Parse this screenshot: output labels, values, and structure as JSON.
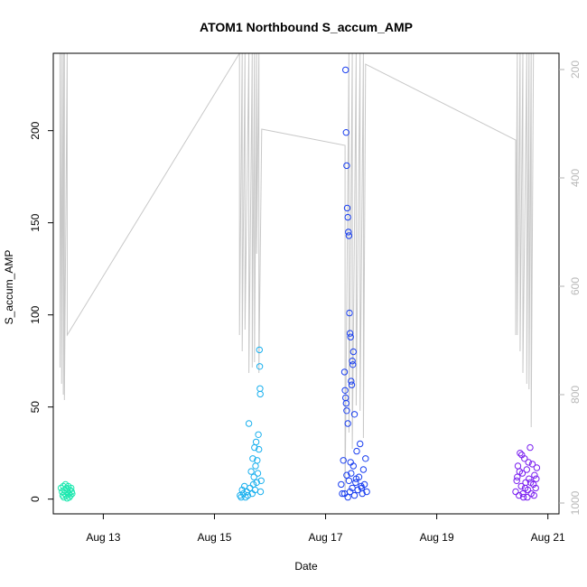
{
  "chart_data": {
    "type": "scatter",
    "title": "ATOM1 Northbound S_accum_AMP",
    "xlabel": "Date",
    "ylabel": "S_accum_AMP",
    "x_ticks": [
      "Aug 13",
      "Aug 15",
      "Aug 17",
      "Aug 19",
      "Aug 21"
    ],
    "x_tick_values": [
      13,
      15,
      17,
      19,
      21
    ],
    "xlim": [
      12.1,
      21.2
    ],
    "y_ticks": [
      0,
      50,
      100,
      150,
      200
    ],
    "ylim": [
      -8,
      242
    ],
    "y2_ticks": [
      200,
      400,
      600,
      800,
      1000
    ],
    "y2_lim": [
      1020,
      170
    ],
    "y2_reversed": true,
    "grid": false,
    "point_series": [
      {
        "color": "#1fe8b0",
        "points": [
          [
            12.24,
            6
          ],
          [
            12.26,
            4
          ],
          [
            12.27,
            2
          ],
          [
            12.28,
            7
          ],
          [
            12.29,
            1
          ],
          [
            12.3,
            5
          ],
          [
            12.31,
            3
          ],
          [
            12.32,
            8
          ],
          [
            12.33,
            2
          ],
          [
            12.34,
            6
          ],
          [
            12.35,
            0.5
          ],
          [
            12.36,
            4
          ],
          [
            12.37,
            7
          ],
          [
            12.38,
            3
          ],
          [
            12.39,
            1
          ],
          [
            12.4,
            5
          ],
          [
            12.41,
            2
          ],
          [
            12.42,
            6
          ],
          [
            12.43,
            4
          ],
          [
            12.44,
            3
          ]
        ]
      },
      {
        "color": "#1ab0ee",
        "points": [
          [
            15.46,
            2
          ],
          [
            15.48,
            1
          ],
          [
            15.5,
            5
          ],
          [
            15.52,
            3
          ],
          [
            15.54,
            7
          ],
          [
            15.56,
            1
          ],
          [
            15.58,
            4
          ],
          [
            15.6,
            2
          ],
          [
            15.62,
            41
          ],
          [
            15.64,
            6
          ],
          [
            15.66,
            15
          ],
          [
            15.68,
            3
          ],
          [
            15.69,
            22
          ],
          [
            15.7,
            8
          ],
          [
            15.71,
            12
          ],
          [
            15.72,
            28
          ],
          [
            15.73,
            5
          ],
          [
            15.74,
            18
          ],
          [
            15.75,
            31
          ],
          [
            15.76,
            9
          ],
          [
            15.77,
            21
          ],
          [
            15.78,
            14
          ],
          [
            15.79,
            35
          ],
          [
            15.8,
            27
          ],
          [
            15.81,
            81
          ],
          [
            15.815,
            72
          ],
          [
            15.82,
            60
          ],
          [
            15.825,
            57
          ],
          [
            15.83,
            4
          ],
          [
            15.84,
            10
          ]
        ]
      },
      {
        "color": "#1a3ff0",
        "points": [
          [
            17.28,
            8
          ],
          [
            17.3,
            3
          ],
          [
            17.32,
            21
          ],
          [
            17.34,
            69
          ],
          [
            17.36,
            233
          ],
          [
            17.37,
            199
          ],
          [
            17.38,
            181
          ],
          [
            17.39,
            158
          ],
          [
            17.4,
            153
          ],
          [
            17.41,
            145
          ],
          [
            17.42,
            143
          ],
          [
            17.43,
            101
          ],
          [
            17.44,
            90
          ],
          [
            17.45,
            88
          ],
          [
            17.46,
            64
          ],
          [
            17.47,
            62
          ],
          [
            17.48,
            75
          ],
          [
            17.49,
            73
          ],
          [
            17.5,
            80
          ],
          [
            17.35,
            59
          ],
          [
            17.36,
            55
          ],
          [
            17.37,
            52
          ],
          [
            17.38,
            48
          ],
          [
            17.4,
            41
          ],
          [
            17.52,
            46
          ],
          [
            17.42,
            10
          ],
          [
            17.44,
            4
          ],
          [
            17.46,
            14
          ],
          [
            17.48,
            6
          ],
          [
            17.5,
            18
          ],
          [
            17.52,
            2
          ],
          [
            17.54,
            9
          ],
          [
            17.56,
            26
          ],
          [
            17.58,
            5
          ],
          [
            17.6,
            12
          ],
          [
            17.62,
            30
          ],
          [
            17.64,
            7
          ],
          [
            17.66,
            3
          ],
          [
            17.68,
            16
          ],
          [
            17.7,
            8
          ],
          [
            17.72,
            22
          ],
          [
            17.74,
            4
          ],
          [
            17.38,
            13
          ],
          [
            17.4,
            1
          ],
          [
            17.45,
            20
          ],
          [
            17.55,
            11
          ],
          [
            17.65,
            6
          ],
          [
            17.34,
            3
          ]
        ]
      },
      {
        "color": "#7a1ff0",
        "points": [
          [
            20.42,
            4
          ],
          [
            20.44,
            10
          ],
          [
            20.46,
            18
          ],
          [
            20.48,
            2
          ],
          [
            20.5,
            25
          ],
          [
            20.52,
            7
          ],
          [
            20.54,
            14
          ],
          [
            20.56,
            1
          ],
          [
            20.58,
            22
          ],
          [
            20.6,
            9
          ],
          [
            20.62,
            16
          ],
          [
            20.64,
            5
          ],
          [
            20.66,
            11
          ],
          [
            20.68,
            28
          ],
          [
            20.7,
            3
          ],
          [
            20.72,
            19
          ],
          [
            20.74,
            8
          ],
          [
            20.76,
            13
          ],
          [
            20.78,
            6
          ],
          [
            20.8,
            17
          ],
          [
            20.45,
            12
          ],
          [
            20.55,
            3
          ],
          [
            20.65,
            20
          ],
          [
            20.75,
            2
          ],
          [
            20.49,
            15
          ],
          [
            20.59,
            6
          ],
          [
            20.69,
            9
          ],
          [
            20.79,
            11
          ],
          [
            20.53,
            24
          ],
          [
            20.63,
            1
          ]
        ]
      }
    ],
    "line_series": [
      {
        "color": "#c8c8c8",
        "axis": "right",
        "points": [
          [
            12.22,
            170
          ],
          [
            12.22,
            750
          ],
          [
            12.25,
            170
          ],
          [
            12.25,
            780
          ],
          [
            12.28,
            170
          ],
          [
            12.28,
            800
          ],
          [
            12.3,
            170
          ],
          [
            12.3,
            810
          ],
          [
            12.35,
            170
          ],
          [
            12.35,
            690
          ],
          [
            15.45,
            170
          ],
          [
            15.45,
            690
          ],
          [
            15.5,
            170
          ],
          [
            15.5,
            720
          ],
          [
            15.55,
            170
          ],
          [
            15.55,
            680
          ],
          [
            15.62,
            170
          ],
          [
            15.62,
            760
          ],
          [
            15.68,
            170
          ],
          [
            15.68,
            750
          ],
          [
            15.72,
            170
          ],
          [
            15.72,
            740
          ],
          [
            15.76,
            170
          ],
          [
            15.76,
            540
          ],
          [
            15.8,
            170
          ],
          [
            15.8,
            760
          ],
          [
            15.85,
            310
          ],
          [
            17.35,
            340
          ],
          [
            17.35,
            990
          ],
          [
            17.42,
            170
          ],
          [
            17.42,
            870
          ],
          [
            17.48,
            170
          ],
          [
            17.48,
            900
          ],
          [
            17.55,
            170
          ],
          [
            17.55,
            820
          ],
          [
            17.62,
            170
          ],
          [
            17.62,
            830
          ],
          [
            17.68,
            170
          ],
          [
            17.68,
            880
          ],
          [
            17.72,
            190
          ],
          [
            20.42,
            330
          ],
          [
            20.42,
            690
          ],
          [
            20.45,
            170
          ],
          [
            20.45,
            690
          ],
          [
            20.5,
            170
          ],
          [
            20.5,
            720
          ],
          [
            20.55,
            170
          ],
          [
            20.55,
            760
          ],
          [
            20.62,
            170
          ],
          [
            20.62,
            780
          ],
          [
            20.66,
            170
          ],
          [
            20.66,
            790
          ],
          [
            20.7,
            170
          ],
          [
            20.7,
            860
          ],
          [
            20.74,
            170
          ]
        ]
      }
    ]
  }
}
